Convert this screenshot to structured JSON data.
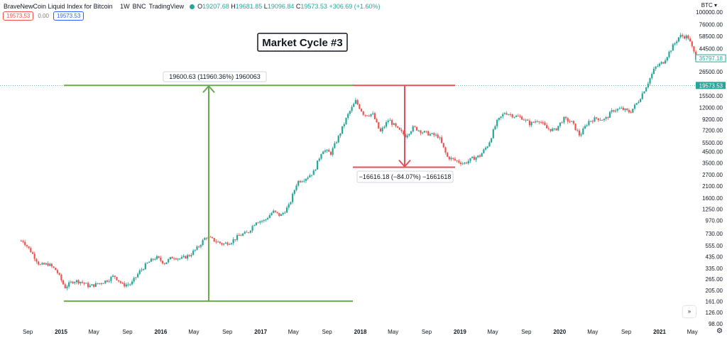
{
  "header": {
    "symbol": "BraveNewCoin Liquid Index for Bitcoin",
    "interval": "1W",
    "exchange": "BNC",
    "source": "TradingView",
    "open_label": "O",
    "open": "19207.68",
    "high_label": "H",
    "high": "19681.85",
    "low_label": "L",
    "low": "19096.84",
    "close_label": "C",
    "close": "19573.53",
    "change": "+306.69 (+1.60%)",
    "status_icon": "status-dot-icon",
    "status_color": "#26a69a"
  },
  "badges": {
    "sell": "19573.53",
    "spread": "0.00",
    "buy": "19573.53"
  },
  "axis": {
    "currency": "BTC",
    "y_ticks": [
      "100000.00",
      "76000.00",
      "58500.00",
      "44500.00",
      "35797.18",
      "26500.00",
      "19573.53",
      "15500.00",
      "12000.00",
      "9200.00",
      "7200.00",
      "5500.00",
      "4500.00",
      "3500.00",
      "2700.00",
      "2100.00",
      "1600.00",
      "1250.00",
      "970.00",
      "730.00",
      "555.00",
      "435.00",
      "335.00",
      "265.00",
      "205.00",
      "161.00",
      "126.00",
      "98.00"
    ],
    "x_ticks": [
      "Sep",
      "2015",
      "May",
      "Sep",
      "2016",
      "May",
      "Sep",
      "2017",
      "May",
      "Sep",
      "2018",
      "May",
      "Sep",
      "2019",
      "May",
      "Sep",
      "2020",
      "May",
      "Sep",
      "2021",
      "May"
    ]
  },
  "labels": {
    "cycle_title": "Market Cycle #3",
    "rise_measure": "19600.63 (11960.36%) 1960063",
    "fall_measure": "−16616.18 (−84.07%) −1661618",
    "current_price": "19573.53",
    "last_price": "35797.18"
  },
  "colors": {
    "up": "#26a69a",
    "down": "#ef5350",
    "rise_tool": "#6aaa4f",
    "fall_tool": "#e0525a",
    "price_line": "#26a69a"
  },
  "chart_data": {
    "type": "candlestick",
    "title": "BraveNewCoin Liquid Index for Bitcoin",
    "interval": "1W",
    "scale": "log",
    "ylim": [
      98,
      100000
    ],
    "x_range": [
      "2014-09",
      "2021-05"
    ],
    "close_series": [
      [
        "2014-08",
        620
      ],
      [
        "2014-09",
        480
      ],
      [
        "2014-10",
        360
      ],
      [
        "2014-11",
        370
      ],
      [
        "2014-12",
        320
      ],
      [
        "2015-01",
        220
      ],
      [
        "2015-02",
        255
      ],
      [
        "2015-03",
        250
      ],
      [
        "2015-04",
        225
      ],
      [
        "2015-05",
        238
      ],
      [
        "2015-06",
        255
      ],
      [
        "2015-07",
        285
      ],
      [
        "2015-08",
        232
      ],
      [
        "2015-09",
        238
      ],
      [
        "2015-10",
        312
      ],
      [
        "2015-11",
        380
      ],
      [
        "2015-12",
        430
      ],
      [
        "2016-01",
        378
      ],
      [
        "2016-02",
        436
      ],
      [
        "2016-03",
        415
      ],
      [
        "2016-04",
        450
      ],
      [
        "2016-05",
        530
      ],
      [
        "2016-06",
        680
      ],
      [
        "2016-07",
        625
      ],
      [
        "2016-08",
        575
      ],
      [
        "2016-09",
        608
      ],
      [
        "2016-10",
        700
      ],
      [
        "2016-11",
        742
      ],
      [
        "2016-12",
        960
      ],
      [
        "2017-01",
        970
      ],
      [
        "2017-02",
        1190
      ],
      [
        "2017-03",
        1080
      ],
      [
        "2017-04",
        1350
      ],
      [
        "2017-05",
        2300
      ],
      [
        "2017-06",
        2500
      ],
      [
        "2017-07",
        2870
      ],
      [
        "2017-08",
        4700
      ],
      [
        "2017-09",
        4340
      ],
      [
        "2017-10",
        6400
      ],
      [
        "2017-11",
        10000
      ],
      [
        "2017-12",
        13800
      ],
      [
        "2018-01",
        10200
      ],
      [
        "2018-02",
        10400
      ],
      [
        "2018-03",
        6900
      ],
      [
        "2018-04",
        9200
      ],
      [
        "2018-05",
        7500
      ],
      [
        "2018-06",
        6400
      ],
      [
        "2018-07",
        7730
      ],
      [
        "2018-08",
        7000
      ],
      [
        "2018-09",
        6600
      ],
      [
        "2018-10",
        6300
      ],
      [
        "2018-11",
        4000
      ],
      [
        "2018-12",
        3700
      ],
      [
        "2019-01",
        3450
      ],
      [
        "2019-02",
        3850
      ],
      [
        "2019-03",
        4100
      ],
      [
        "2019-04",
        5300
      ],
      [
        "2019-05",
        8600
      ],
      [
        "2019-06",
        10800
      ],
      [
        "2019-07",
        10000
      ],
      [
        "2019-08",
        9600
      ],
      [
        "2019-09",
        8300
      ],
      [
        "2019-10",
        9200
      ],
      [
        "2019-11",
        7550
      ],
      [
        "2019-12",
        7200
      ],
      [
        "2020-01",
        9350
      ],
      [
        "2020-02",
        8600
      ],
      [
        "2020-03",
        6400
      ],
      [
        "2020-04",
        8800
      ],
      [
        "2020-05",
        9450
      ],
      [
        "2020-06",
        9140
      ],
      [
        "2020-07",
        11350
      ],
      [
        "2020-08",
        11650
      ],
      [
        "2020-09",
        10780
      ],
      [
        "2020-10",
        13800
      ],
      [
        "2020-11",
        19700
      ],
      [
        "2020-12",
        29000
      ],
      [
        "2021-01",
        33100
      ],
      [
        "2021-02",
        45200
      ],
      [
        "2021-03",
        58800
      ],
      [
        "2021-04",
        57700
      ],
      [
        "2021-05",
        35797
      ]
    ],
    "annotations": [
      {
        "type": "measure",
        "from_price": 162,
        "to_price": 19600,
        "label": "19600.63 (11960.36%) 1960063",
        "direction": "up"
      },
      {
        "type": "measure",
        "from_price": 19600,
        "to_price": 3180,
        "label": "−16616.18 (−84.07%) −1661618",
        "direction": "down"
      },
      {
        "type": "text",
        "label": "Market Cycle #3"
      }
    ],
    "current_price": 19573.53
  }
}
